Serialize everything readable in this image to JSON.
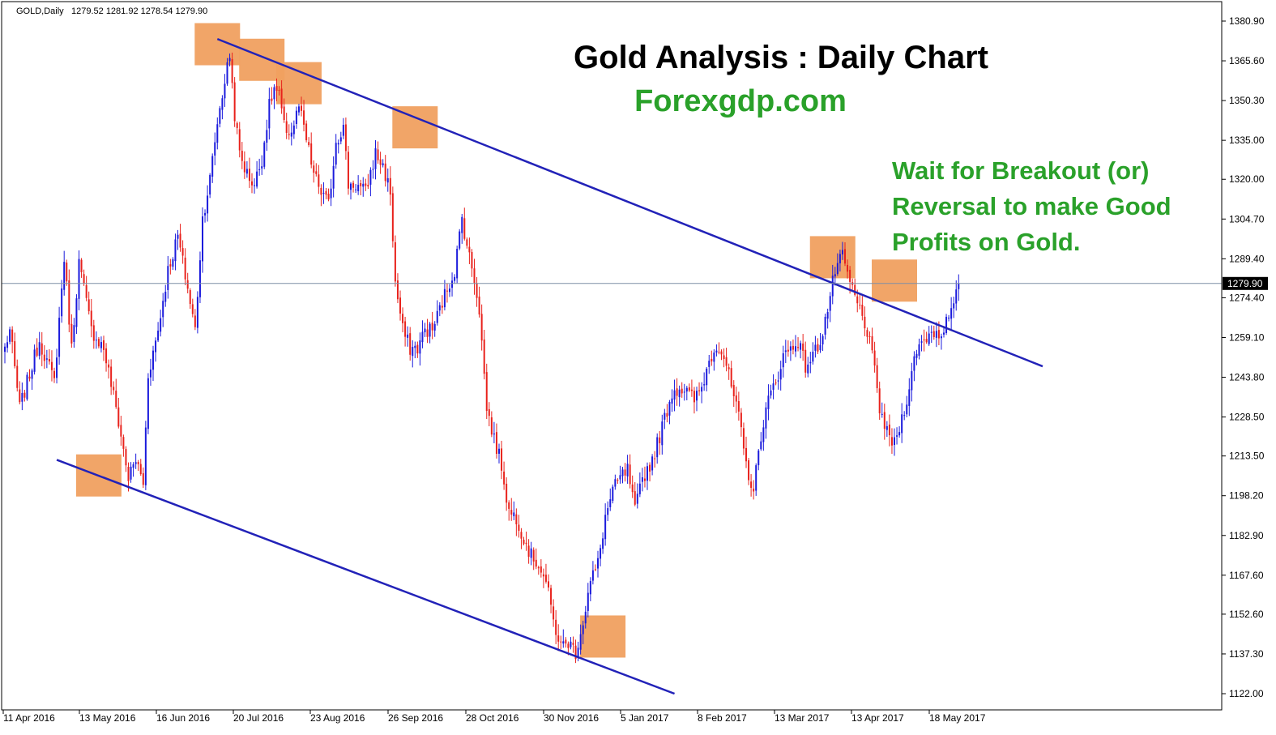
{
  "header": {
    "symbol": "GOLD,Daily",
    "ohlc": "1279.52 1281.92 1278.54 1279.90"
  },
  "chart_data": {
    "type": "candlestick",
    "title": "Gold Analysis : Daily Chart",
    "subtitle": "Forexgdp.com",
    "annotation_lines": [
      "Wait for Breakout (or)",
      "Reversal to make Good",
      "Profits on Gold."
    ],
    "y_ticks": [
      "1380.90",
      "1365.60",
      "1350.30",
      "1335.00",
      "1320.00",
      "1304.70",
      "1289.40",
      "1274.40",
      "1259.10",
      "1243.80",
      "1228.50",
      "1213.50",
      "1198.20",
      "1182.90",
      "1167.60",
      "1152.60",
      "1137.30",
      "1122.00"
    ],
    "ylim": [
      1119.0,
      1382.5
    ],
    "current_price": "1279.90",
    "x_ticks": [
      "11 Apr 2016",
      "13 May 2016",
      "16 Jun 2016",
      "20 Jul 2016",
      "23 Aug 2016",
      "26 Sep 2016",
      "28 Oct 2016",
      "30 Nov 2016",
      "5 Jan 2017",
      "8 Feb 2017",
      "13 Mar 2017",
      "13 Apr 2017",
      "18 May 2017"
    ],
    "up_color": "#1a1adc",
    "down_color": "#e8221c",
    "trendline_color": "#2222b8",
    "box_color": "#f0a060",
    "anchors": [
      [
        0,
        1255
      ],
      [
        2,
        1262
      ],
      [
        6,
        1232
      ],
      [
        10,
        1245
      ],
      [
        14,
        1258
      ],
      [
        20,
        1242
      ],
      [
        24,
        1290
      ],
      [
        27,
        1255
      ],
      [
        30,
        1288
      ],
      [
        35,
        1262
      ],
      [
        40,
        1255
      ],
      [
        45,
        1232
      ],
      [
        50,
        1205
      ],
      [
        53,
        1212
      ],
      [
        56,
        1203
      ],
      [
        58,
        1245
      ],
      [
        62,
        1262
      ],
      [
        66,
        1285
      ],
      [
        70,
        1298
      ],
      [
        74,
        1278
      ],
      [
        77,
        1262
      ],
      [
        80,
        1305
      ],
      [
        83,
        1320
      ],
      [
        86,
        1342
      ],
      [
        89,
        1358
      ],
      [
        91,
        1368
      ],
      [
        93,
        1345
      ],
      [
        95,
        1330
      ],
      [
        98,
        1322
      ],
      [
        101,
        1318
      ],
      [
        104,
        1328
      ],
      [
        107,
        1348
      ],
      [
        109,
        1355
      ],
      [
        111,
        1352
      ],
      [
        113,
        1340
      ],
      [
        116,
        1338
      ],
      [
        119,
        1348
      ],
      [
        122,
        1335
      ],
      [
        125,
        1322
      ],
      [
        128,
        1315
      ],
      [
        131,
        1310
      ],
      [
        134,
        1335
      ],
      [
        137,
        1340
      ],
      [
        139,
        1318
      ],
      [
        142,
        1318
      ],
      [
        146,
        1315
      ],
      [
        150,
        1330
      ],
      [
        153,
        1325
      ],
      [
        156,
        1315
      ],
      [
        158,
        1280
      ],
      [
        161,
        1262
      ],
      [
        164,
        1255
      ],
      [
        167,
        1255
      ],
      [
        170,
        1262
      ],
      [
        173,
        1262
      ],
      [
        176,
        1270
      ],
      [
        179,
        1278
      ],
      [
        182,
        1285
      ],
      [
        185,
        1305
      ],
      [
        188,
        1290
      ],
      [
        190,
        1282
      ],
      [
        192,
        1270
      ],
      [
        195,
        1232
      ],
      [
        198,
        1220
      ],
      [
        201,
        1210
      ],
      [
        204,
        1192
      ],
      [
        207,
        1190
      ],
      [
        210,
        1182
      ],
      [
        213,
        1175
      ],
      [
        216,
        1172
      ],
      [
        219,
        1165
      ],
      [
        222,
        1150
      ],
      [
        225,
        1140
      ],
      [
        228,
        1142
      ],
      [
        231,
        1138
      ],
      [
        234,
        1150
      ],
      [
        237,
        1165
      ],
      [
        240,
        1172
      ],
      [
        243,
        1190
      ],
      [
        246,
        1200
      ],
      [
        249,
        1205
      ],
      [
        252,
        1208
      ],
      [
        255,
        1192
      ],
      [
        258,
        1205
      ],
      [
        261,
        1210
      ],
      [
        264,
        1218
      ],
      [
        267,
        1228
      ],
      [
        270,
        1238
      ],
      [
        273,
        1240
      ],
      [
        276,
        1238
      ],
      [
        279,
        1235
      ],
      [
        282,
        1240
      ],
      [
        285,
        1250
      ],
      [
        288,
        1257
      ],
      [
        291,
        1252
      ],
      [
        294,
        1240
      ],
      [
        297,
        1228
      ],
      [
        300,
        1210
      ],
      [
        303,
        1200
      ],
      [
        306,
        1222
      ],
      [
        309,
        1235
      ],
      [
        312,
        1242
      ],
      [
        315,
        1252
      ],
      [
        318,
        1255
      ],
      [
        321,
        1258
      ],
      [
        324,
        1248
      ],
      [
        327,
        1252
      ],
      [
        330,
        1258
      ],
      [
        333,
        1270
      ],
      [
        336,
        1285
      ],
      [
        339,
        1290
      ],
      [
        342,
        1280
      ],
      [
        345,
        1272
      ],
      [
        348,
        1265
      ],
      [
        351,
        1252
      ],
      [
        354,
        1232
      ],
      [
        357,
        1222
      ],
      [
        360,
        1218
      ],
      [
        363,
        1228
      ],
      [
        366,
        1240
      ],
      [
        369,
        1255
      ],
      [
        372,
        1258
      ],
      [
        375,
        1262
      ],
      [
        378,
        1260
      ],
      [
        381,
        1265
      ],
      [
        384,
        1270
      ],
      [
        386,
        1279.9
      ]
    ],
    "upper_trendline": [
      [
        86,
        1374
      ],
      [
        420,
        1248
      ]
    ],
    "lower_trendline": [
      [
        21,
        1212
      ],
      [
        271,
        1122
      ]
    ],
    "highlight_boxes": [
      [
        86,
        1372
      ],
      [
        104,
        1366
      ],
      [
        119,
        1357
      ],
      [
        166,
        1340
      ],
      [
        242,
        1144
      ],
      [
        335,
        1290
      ],
      [
        360,
        1281
      ],
      [
        38,
        1206
      ]
    ]
  }
}
